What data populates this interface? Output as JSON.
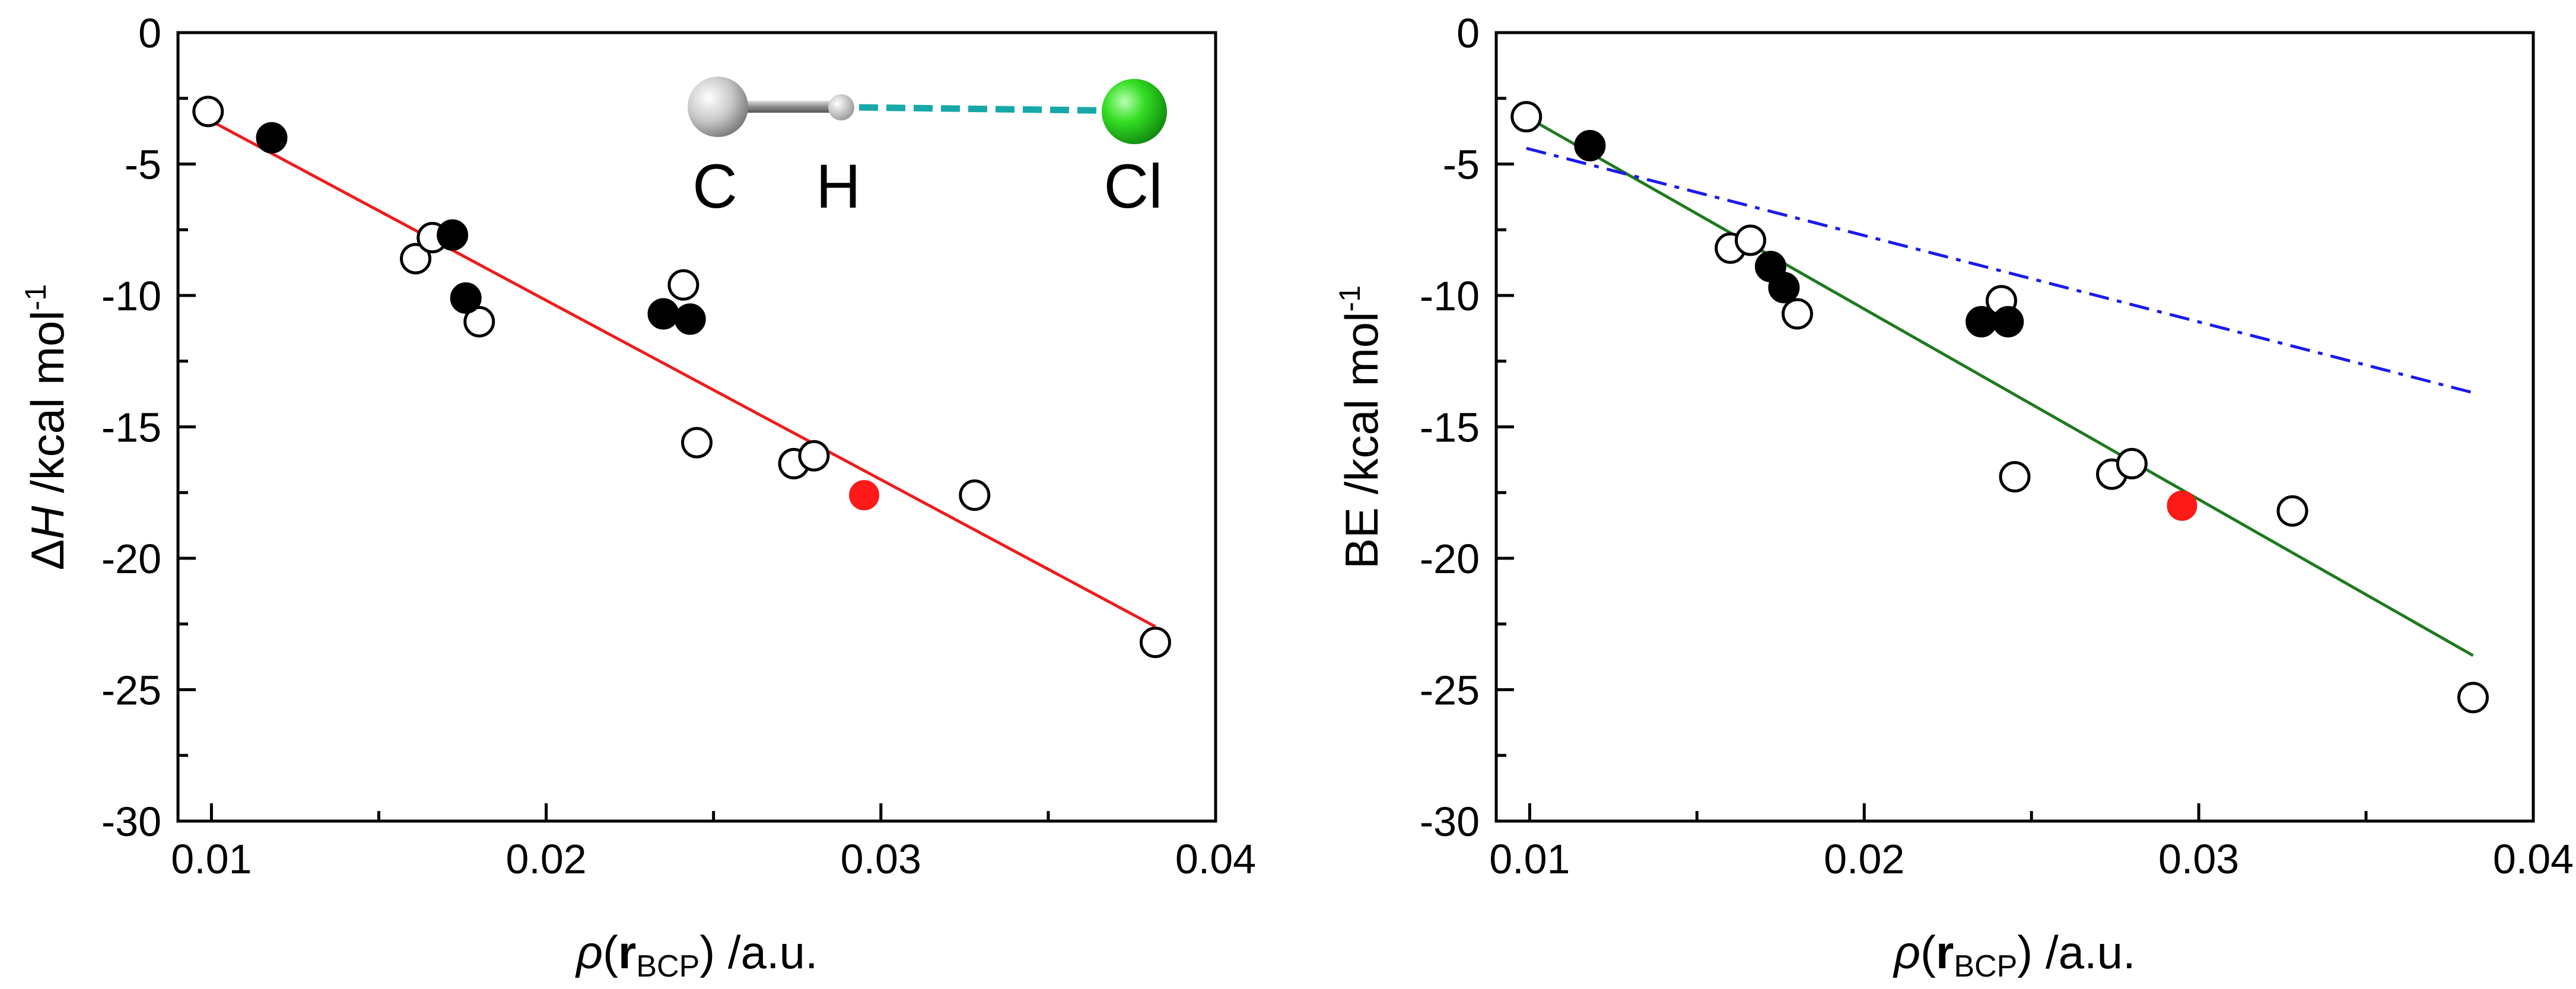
{
  "chart_data": [
    {
      "type": "scatter",
      "panel": "left",
      "ylabel": {
        "italic": "H",
        "prefix": "Δ",
        "unit_before": " /kcal mol",
        "sup": "-1"
      },
      "xlabel": {
        "rho": "ρ",
        "open": "(",
        "bold": "r",
        "sub": "BCP",
        "close": ") /a.u."
      },
      "xlim": [
        0.009,
        0.04
      ],
      "ylim": [
        -30,
        0
      ],
      "xticks": [
        "0.01",
        "0.02",
        "0.03",
        "0.04"
      ],
      "yticks": [
        "0",
        "-5",
        "-10",
        "-15",
        "-20",
        "-25",
        "-30"
      ],
      "xtick_values": [
        0.01,
        0.02,
        0.03,
        0.04
      ],
      "ytick_values": [
        0,
        -5,
        -10,
        -15,
        -20,
        -25,
        -30
      ],
      "inset_labels": {
        "c": "C",
        "h": "H",
        "cl": "Cl"
      },
      "series": [
        {
          "name": "open",
          "marker": "open-circle",
          "points": [
            [
              0.0099,
              -3.0
            ],
            [
              0.0161,
              -8.6
            ],
            [
              0.0166,
              -7.8
            ],
            [
              0.018,
              -11.0
            ],
            [
              0.0241,
              -9.6
            ],
            [
              0.0245,
              -15.6
            ],
            [
              0.0274,
              -16.4
            ],
            [
              0.028,
              -16.1
            ],
            [
              0.0328,
              -17.6
            ],
            [
              0.0382,
              -23.2
            ]
          ]
        },
        {
          "name": "filled",
          "marker": "filled-circle",
          "points": [
            [
              0.0118,
              -4.0
            ],
            [
              0.0172,
              -7.7
            ],
            [
              0.0176,
              -10.1
            ],
            [
              0.0235,
              -10.7
            ],
            [
              0.0243,
              -10.9
            ]
          ]
        },
        {
          "name": "highlight",
          "marker": "red-circle",
          "points": [
            [
              0.0295,
              -17.6
            ]
          ]
        }
      ],
      "fit_lines": [
        {
          "name": "linear-fit",
          "color": "#ee1c1c",
          "style": "solid",
          "x": [
            0.0099,
            0.0382
          ],
          "y": [
            -3.3,
            -22.6
          ]
        }
      ]
    },
    {
      "type": "scatter",
      "panel": "right",
      "ylabel": {
        "text": "BE /kcal mol",
        "sup": "-1"
      },
      "xlabel": {
        "rho": "ρ",
        "open": "(",
        "bold": "r",
        "sub": "BCP",
        "close": ") /a.u."
      },
      "xlim": [
        0.009,
        0.04
      ],
      "ylim": [
        -30,
        0
      ],
      "xticks": [
        "0.01",
        "0.02",
        "0.03",
        "0.04"
      ],
      "yticks": [
        "0",
        "-5",
        "-10",
        "-15",
        "-20",
        "-25",
        "-30"
      ],
      "xtick_values": [
        0.01,
        0.02,
        0.03,
        0.04
      ],
      "ytick_values": [
        0,
        -5,
        -10,
        -15,
        -20,
        -25,
        -30
      ],
      "series": [
        {
          "name": "open",
          "marker": "open-circle",
          "points": [
            [
              0.0099,
              -3.2
            ],
            [
              0.016,
              -8.2
            ],
            [
              0.0166,
              -7.9
            ],
            [
              0.018,
              -10.7
            ],
            [
              0.0241,
              -10.2
            ],
            [
              0.0245,
              -16.9
            ],
            [
              0.0274,
              -16.8
            ],
            [
              0.028,
              -16.4
            ],
            [
              0.0328,
              -18.2
            ],
            [
              0.0382,
              -25.3
            ]
          ]
        },
        {
          "name": "filled",
          "marker": "filled-circle",
          "points": [
            [
              0.0118,
              -4.3
            ],
            [
              0.0172,
              -8.9
            ],
            [
              0.0176,
              -9.7
            ],
            [
              0.0235,
              -11.0
            ],
            [
              0.0243,
              -11.0
            ]
          ]
        },
        {
          "name": "highlight",
          "marker": "red-circle",
          "points": [
            [
              0.0295,
              -18.0
            ]
          ]
        }
      ],
      "fit_lines": [
        {
          "name": "linear-fit",
          "color": "#1f7a1f",
          "style": "solid",
          "x": [
            0.0099,
            0.0382
          ],
          "y": [
            -3.2,
            -23.7
          ]
        },
        {
          "name": "reference-line",
          "color": "#1a1aee",
          "style": "dashdot",
          "x": [
            0.0099,
            0.0382
          ],
          "y": [
            -4.4,
            -13.7
          ]
        }
      ]
    }
  ]
}
